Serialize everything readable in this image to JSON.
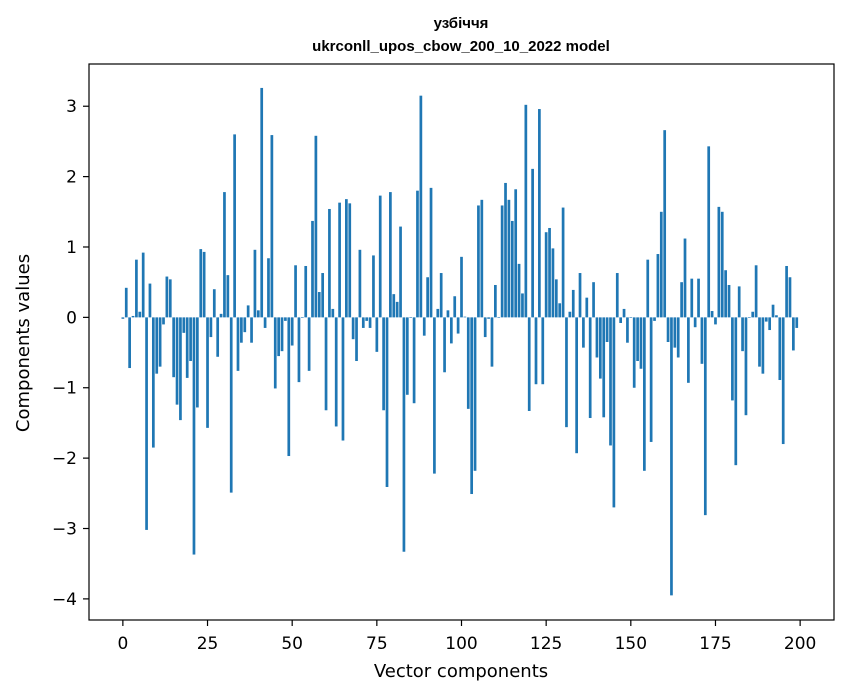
{
  "chart_data": {
    "type": "bar",
    "title_line1": "узбіччя",
    "title_line2": "ukrconll_upos_cbow_200_10_2022 model",
    "xlabel": "Vector components",
    "ylabel": "Components values",
    "xlim": [
      -10,
      210
    ],
    "ylim": [
      -4.3,
      3.6
    ],
    "x_ticks": [
      0,
      25,
      50,
      75,
      100,
      125,
      150,
      175,
      200
    ],
    "x_tick_labels": [
      "0",
      "25",
      "50",
      "75",
      "100",
      "125",
      "150",
      "175",
      "200"
    ],
    "y_ticks": [
      3,
      2,
      1,
      0,
      -1,
      -2,
      -3,
      -4
    ],
    "y_tick_labels": [
      "3",
      "2",
      "1",
      "0",
      "−1",
      "−2",
      "−3",
      "−4"
    ],
    "bar_color": "#1f77b4",
    "grid": false,
    "values": [
      -0.02,
      0.42,
      -0.72,
      0.02,
      0.82,
      0.08,
      0.92,
      -3.02,
      0.48,
      -1.85,
      -0.8,
      -0.7,
      -0.1,
      0.58,
      0.54,
      -0.85,
      -1.24,
      -1.46,
      -0.22,
      -0.86,
      -0.62,
      -3.37,
      -1.28,
      0.97,
      0.93,
      -1.57,
      -0.28,
      0.4,
      -0.56,
      0.05,
      1.78,
      0.6,
      -2.49,
      2.6,
      -0.76,
      -0.36,
      -0.21,
      0.17,
      -0.36,
      0.96,
      0.1,
      3.26,
      -0.15,
      0.84,
      2.59,
      -1.01,
      -0.55,
      -0.48,
      -0.05,
      -1.97,
      -0.4,
      0.74,
      -0.92,
      0.0,
      0.73,
      -0.76,
      1.37,
      2.58,
      0.36,
      0.63,
      -1.32,
      1.54,
      0.12,
      -1.55,
      1.63,
      -1.75,
      1.68,
      1.62,
      -0.31,
      -0.62,
      0.96,
      -0.15,
      -0.05,
      -0.15,
      0.88,
      -0.49,
      1.73,
      -1.32,
      -2.41,
      1.78,
      0.33,
      0.22,
      1.29,
      -3.33,
      -1.1,
      0.0,
      -1.22,
      1.8,
      3.15,
      -0.26,
      0.57,
      1.84,
      -2.22,
      0.12,
      0.63,
      -0.78,
      0.1,
      -0.37,
      0.3,
      -0.23,
      0.86,
      0.01,
      -1.3,
      -2.51,
      -2.18,
      1.59,
      1.67,
      -0.28,
      -0.02,
      -0.7,
      0.46,
      0.0,
      1.59,
      1.91,
      1.67,
      1.37,
      1.82,
      0.76,
      0.34,
      3.02,
      -1.33,
      2.11,
      -0.95,
      2.96,
      -0.95,
      1.21,
      1.27,
      0.98,
      0.54,
      0.2,
      1.56,
      -1.56,
      0.08,
      0.39,
      -1.93,
      0.63,
      -0.43,
      0.28,
      -1.43,
      0.5,
      -0.57,
      -0.87,
      -1.42,
      -0.35,
      -1.82,
      -2.7,
      0.63,
      -0.08,
      0.12,
      -0.36,
      0.0,
      -1.0,
      -0.62,
      -0.73,
      -2.18,
      0.82,
      -1.77,
      -0.05,
      0.9,
      1.5,
      2.66,
      -0.35,
      -3.95,
      -0.43,
      -0.57,
      0.5,
      1.12,
      -0.93,
      0.55,
      -0.14,
      0.55,
      -0.66,
      -2.81,
      2.43,
      0.09,
      -0.1,
      1.57,
      1.5,
      0.67,
      0.46,
      -1.18,
      -2.1,
      0.44,
      -0.48,
      -1.39,
      0.0,
      0.08,
      0.74,
      -0.7,
      -0.8,
      -0.06,
      -0.18,
      0.18,
      0.03,
      -0.89,
      -1.8,
      0.73,
      0.57,
      -0.47,
      -0.15
    ]
  }
}
